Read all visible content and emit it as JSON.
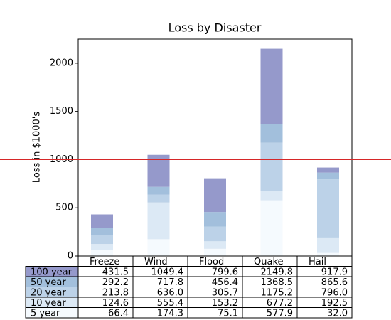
{
  "chart_data": {
    "type": "stacked_bar",
    "title": "Loss by Disaster",
    "y_label": "Loss in $1000's",
    "categories": [
      "Freeze",
      "Wind",
      "Flood",
      "Quake",
      "Hail"
    ],
    "series": [
      {
        "name": "5 year",
        "color": "#f5fafe",
        "values": [
          66.386,
          174.296,
          75.131,
          577.908,
          32.015
        ]
      },
      {
        "name": "10 year",
        "color": "#dce9f5",
        "values": [
          58.23,
          381.139,
          78.045,
          99.308,
          160.454
        ]
      },
      {
        "name": "20 year",
        "color": "#bcd2e8",
        "values": [
          89.135,
          80.552,
          152.558,
          497.981,
          603.535
        ]
      },
      {
        "name": "50 year",
        "color": "#a2bfdc",
        "values": [
          78.415,
          81.858,
          150.656,
          193.263,
          69.638
        ]
      },
      {
        "name": "100 year",
        "color": "#9599cb",
        "values": [
          139.361,
          331.509,
          343.164,
          781.38,
          52.269
        ]
      }
    ],
    "ylim": [
      0,
      2250
    ],
    "yticks": [
      0,
      500,
      1000,
      1500,
      2000
    ],
    "reference_line": {
      "value": 1000,
      "color": "#d62728"
    },
    "table": {
      "rows": [
        {
          "label": "100 year",
          "color": "#9599cb",
          "cells": [
            "431.5",
            "1049.4",
            "799.6",
            "2149.8",
            "917.9"
          ]
        },
        {
          "label": "50 year",
          "color": "#a2bfdc",
          "cells": [
            "292.2",
            "717.8",
            "456.4",
            "1368.5",
            "865.6"
          ]
        },
        {
          "label": "20 year",
          "color": "#bcd2e8",
          "cells": [
            "213.8",
            "636.0",
            "305.7",
            "1175.2",
            "796.0"
          ]
        },
        {
          "label": "10 year",
          "color": "#dce9f5",
          "cells": [
            "124.6",
            "555.4",
            "153.2",
            "677.2",
            "192.5"
          ]
        },
        {
          "label": "5 year",
          "color": "#f5fafe",
          "cells": [
            "66.4",
            "174.3",
            "75.1",
            "577.9",
            "32.0"
          ]
        }
      ]
    }
  }
}
